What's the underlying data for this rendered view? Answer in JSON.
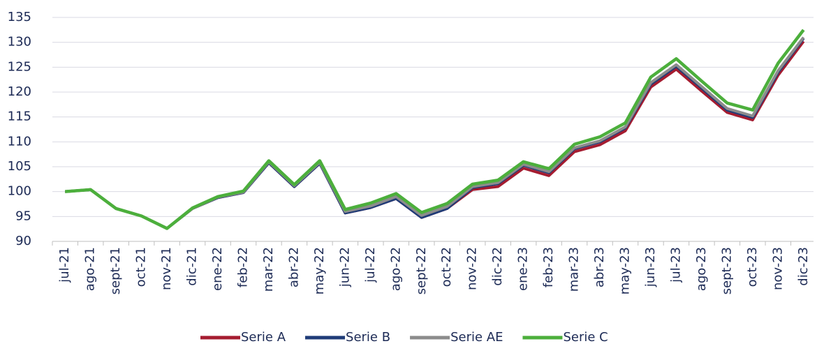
{
  "chart_data": {
    "type": "line",
    "categories": [
      "jul-21",
      "ago-21",
      "sept-21",
      "oct-21",
      "nov-21",
      "dic-21",
      "ene-22",
      "feb-22",
      "mar-22",
      "abr-22",
      "may-22",
      "jun-22",
      "jul-22",
      "ago-22",
      "sept-22",
      "oct-22",
      "nov-22",
      "dic-22",
      "ene-23",
      "feb-23",
      "mar-23",
      "abr-23",
      "may-23",
      "jun-23",
      "jul-23",
      "ago-23",
      "sept-23",
      "oct-23",
      "nov-23",
      "dic-23"
    ],
    "series": [
      {
        "name": "Serie A",
        "color": "#a51c30",
        "values": [
          100,
          100.4,
          96.6,
          95.1,
          92.6,
          96.6,
          98.8,
          99.8,
          105.8,
          101.0,
          105.7,
          95.7,
          96.8,
          98.6,
          94.8,
          96.6,
          100.4,
          101.0,
          104.7,
          103.2,
          108.0,
          109.4,
          112.2,
          121.0,
          124.6,
          120.2,
          115.9,
          114.4,
          123.4,
          130.2
        ]
      },
      {
        "name": "Serie B",
        "color": "#1f3c78",
        "values": [
          100,
          100.4,
          96.6,
          95.1,
          92.6,
          96.6,
          98.8,
          99.8,
          105.8,
          101.0,
          105.7,
          95.7,
          96.8,
          98.6,
          94.8,
          96.6,
          100.8,
          101.6,
          105.3,
          103.8,
          108.6,
          110.0,
          112.8,
          121.6,
          125.2,
          120.8,
          116.4,
          114.9,
          124.0,
          130.8
        ]
      },
      {
        "name": "Serie AE",
        "color": "#8c8c8c",
        "values": [
          100,
          100.4,
          96.6,
          95.1,
          92.6,
          96.6,
          98.9,
          99.9,
          106.0,
          101.2,
          105.9,
          96.0,
          97.1,
          99.0,
          95.2,
          97.0,
          101.0,
          101.8,
          105.5,
          104.0,
          108.8,
          110.2,
          113.0,
          121.9,
          125.5,
          121.1,
          116.7,
          115.2,
          124.3,
          131.0
        ]
      },
      {
        "name": "Serie C",
        "color": "#4caf3c",
        "values": [
          100,
          100.4,
          96.6,
          95.1,
          92.6,
          96.7,
          99.0,
          100.1,
          106.2,
          101.4,
          106.2,
          96.4,
          97.7,
          99.6,
          95.8,
          97.6,
          101.5,
          102.3,
          106.0,
          104.6,
          109.5,
          111.0,
          113.8,
          123.0,
          126.7,
          122.2,
          117.8,
          116.4,
          125.8,
          132.5
        ]
      }
    ],
    "ylim": [
      90,
      135
    ],
    "yticks": [
      90,
      95,
      100,
      105,
      110,
      115,
      120,
      125,
      130,
      135
    ],
    "grid": true,
    "legend": "bottom"
  }
}
